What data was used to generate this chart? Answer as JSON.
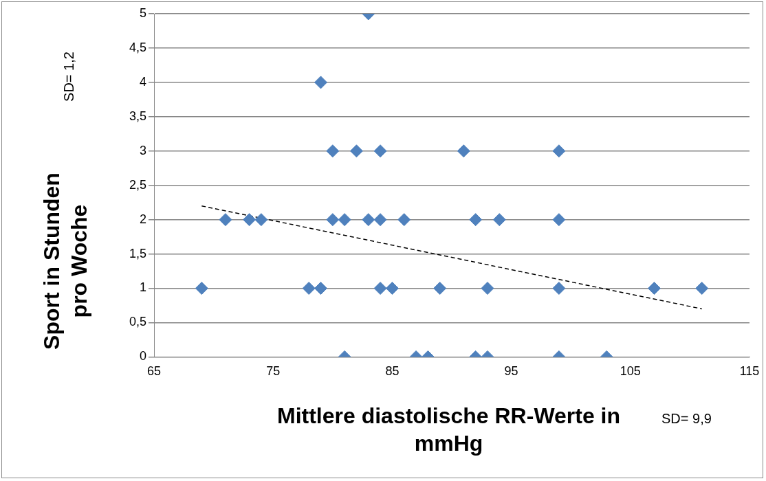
{
  "chart_data": {
    "type": "scatter",
    "xlabel": "Mittlere diastolische RR-Werte in mmHg",
    "ylabel": "Sport in Stunden pro Woche",
    "annotations": [
      "SD= 1,2",
      "SD= 9,9"
    ],
    "xlim": [
      65,
      115
    ],
    "xticks": [
      65,
      75,
      85,
      95,
      105,
      115
    ],
    "ylim": [
      0,
      5
    ],
    "yticks": [
      0,
      {
        "value": 0.5,
        "label": "0,5"
      },
      1,
      {
        "value": 1.5,
        "label": "1,5"
      },
      2,
      {
        "value": 2.5,
        "label": "2,5"
      },
      3,
      {
        "value": 3.5,
        "label": "3,5"
      },
      4,
      {
        "value": 4.5,
        "label": "4,5"
      },
      5
    ],
    "grid": "y",
    "marker": "diamond",
    "series": [
      {
        "color": "#4f81bd",
        "x": [
          83,
          79,
          80,
          82,
          84,
          91,
          99,
          71,
          73,
          74,
          80,
          81,
          83,
          84,
          86,
          92,
          94,
          99,
          69,
          78,
          79,
          84,
          85,
          89,
          93,
          99,
          107,
          111,
          81,
          87,
          88,
          92,
          93,
          99,
          103
        ],
        "values": [
          5,
          4,
          3,
          3,
          3,
          3,
          3,
          2,
          2,
          2,
          2,
          2,
          2,
          2,
          2,
          2,
          2,
          2,
          1,
          1,
          1,
          1,
          1,
          1,
          1,
          1,
          1,
          1,
          0,
          0,
          0,
          0,
          0,
          0,
          0
        ]
      },
      {
        "type": "line",
        "color": "#000000",
        "line_style": "dashed",
        "marker": "none",
        "x": [
          69,
          111
        ],
        "values": [
          2.2,
          0.7
        ]
      }
    ]
  }
}
